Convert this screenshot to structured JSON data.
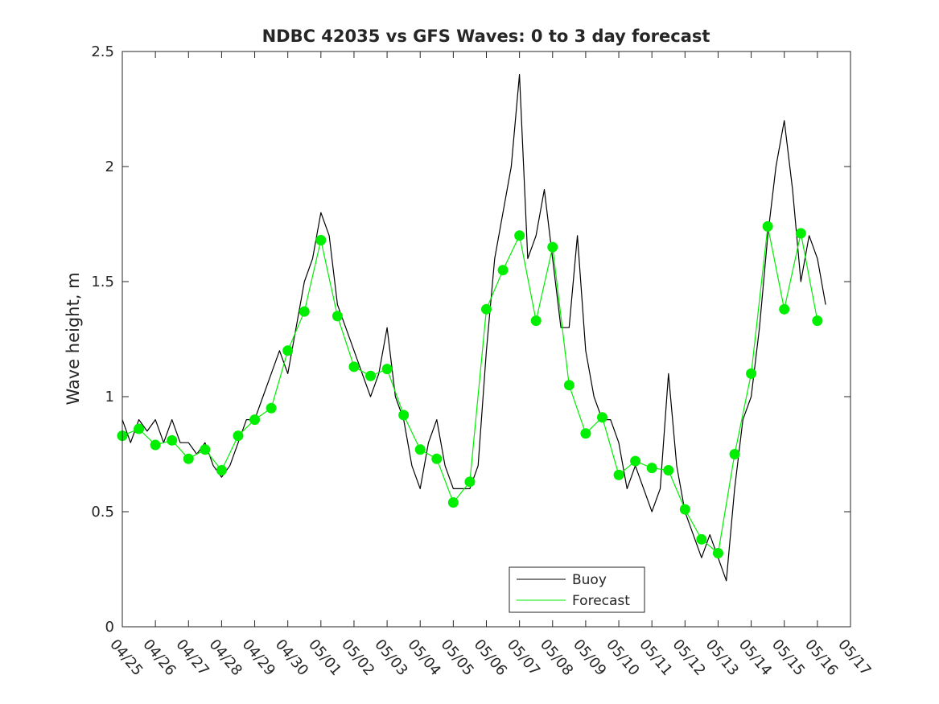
{
  "chart_data": {
    "type": "line",
    "title": "NDBC 42035 vs GFS Waves: 0 to 3 day forecast",
    "xlabel": "",
    "ylabel": "Wave height, m",
    "xlim": [
      "04/25",
      "05/17"
    ],
    "ylim": [
      0,
      2.5
    ],
    "yticks": [
      "0",
      "0.5",
      "1",
      "1.5",
      "2",
      "2.5"
    ],
    "xticks": [
      "04/25",
      "04/26",
      "04/27",
      "04/28",
      "04/29",
      "04/30",
      "05/01",
      "05/02",
      "05/03",
      "05/04",
      "05/05",
      "05/06",
      "05/07",
      "05/08",
      "05/09",
      "05/10",
      "05/11",
      "05/12",
      "05/13",
      "05/14",
      "05/15",
      "05/16",
      "05/17"
    ],
    "grid": false,
    "legend": {
      "position": "bottom-center",
      "entries": [
        "Buoy",
        "Forecast"
      ]
    },
    "colors": {
      "buoy": "#000000",
      "forecast": "#00ee00",
      "axis": "#262626"
    },
    "series": [
      {
        "name": "Buoy",
        "color": "#000000",
        "x": [
          "04/25 00:00",
          "04/25 06:00",
          "04/25 12:00",
          "04/25 18:00",
          "04/26 00:00",
          "04/26 06:00",
          "04/26 12:00",
          "04/26 18:00",
          "04/27 00:00",
          "04/27 06:00",
          "04/27 12:00",
          "04/27 18:00",
          "04/28 00:00",
          "04/28 06:00",
          "04/28 12:00",
          "04/28 18:00",
          "04/29 00:00",
          "04/29 06:00",
          "04/29 12:00",
          "04/29 18:00",
          "04/30 00:00",
          "04/30 06:00",
          "04/30 12:00",
          "04/30 18:00",
          "05/01 00:00",
          "05/01 06:00",
          "05/01 12:00",
          "05/01 18:00",
          "05/02 00:00",
          "05/02 06:00",
          "05/02 12:00",
          "05/02 18:00",
          "05/03 00:00",
          "05/03 06:00",
          "05/03 12:00",
          "05/03 18:00",
          "05/04 00:00",
          "05/04 06:00",
          "05/04 12:00",
          "05/04 18:00",
          "05/05 00:00",
          "05/05 06:00",
          "05/05 12:00",
          "05/05 18:00",
          "05/06 00:00",
          "05/06 06:00",
          "05/06 12:00",
          "05/06 18:00",
          "05/07 00:00",
          "05/07 06:00",
          "05/07 12:00",
          "05/07 18:00",
          "05/08 00:00",
          "05/08 06:00",
          "05/08 12:00",
          "05/08 18:00",
          "05/09 00:00",
          "05/09 06:00",
          "05/09 12:00",
          "05/09 18:00",
          "05/10 00:00",
          "05/10 06:00",
          "05/10 12:00",
          "05/10 18:00",
          "05/11 00:00",
          "05/11 06:00",
          "05/11 12:00",
          "05/11 18:00",
          "05/12 00:00",
          "05/12 06:00",
          "05/12 12:00",
          "05/12 18:00",
          "05/13 00:00",
          "05/13 06:00",
          "05/13 12:00",
          "05/13 18:00",
          "05/14 00:00",
          "05/14 06:00",
          "05/14 12:00",
          "05/14 18:00",
          "05/15 00:00",
          "05/15 06:00",
          "05/15 12:00",
          "05/15 18:00",
          "05/16 00:00",
          "05/16 06:00"
        ],
        "values": [
          0.9,
          0.8,
          0.9,
          0.85,
          0.9,
          0.8,
          0.9,
          0.8,
          0.8,
          0.75,
          0.8,
          0.7,
          0.65,
          0.7,
          0.8,
          0.9,
          0.9,
          1.0,
          1.1,
          1.2,
          1.1,
          1.3,
          1.5,
          1.6,
          1.8,
          1.7,
          1.4,
          1.3,
          1.2,
          1.1,
          1.0,
          1.1,
          1.3,
          1.0,
          0.9,
          0.7,
          0.6,
          0.8,
          0.9,
          0.7,
          0.6,
          0.6,
          0.6,
          0.7,
          1.2,
          1.6,
          1.8,
          2.0,
          2.4,
          1.6,
          1.7,
          1.9,
          1.6,
          1.3,
          1.3,
          1.7,
          1.2,
          1.0,
          0.9,
          0.9,
          0.8,
          0.6,
          0.7,
          0.6,
          0.5,
          0.6,
          1.1,
          0.7,
          0.5,
          0.4,
          0.3,
          0.4,
          0.3,
          0.2,
          0.6,
          0.9,
          1.0,
          1.3,
          1.7,
          2.0,
          2.2,
          1.9,
          1.5,
          1.7,
          1.6,
          1.4
        ]
      },
      {
        "name": "Forecast",
        "color": "#00ee00",
        "x": [
          "04/25 00:00",
          "04/25 12:00",
          "04/26 00:00",
          "04/26 12:00",
          "04/27 00:00",
          "04/27 12:00",
          "04/28 00:00",
          "04/28 12:00",
          "04/29 00:00",
          "04/29 12:00",
          "04/30 00:00",
          "04/30 12:00",
          "05/01 00:00",
          "05/01 12:00",
          "05/02 00:00",
          "05/02 12:00",
          "05/03 00:00",
          "05/03 12:00",
          "05/04 00:00",
          "05/04 12:00",
          "05/05 00:00",
          "05/05 12:00",
          "05/06 00:00",
          "05/06 12:00",
          "05/07 00:00",
          "05/07 12:00",
          "05/08 00:00",
          "05/08 12:00",
          "05/09 00:00",
          "05/09 12:00",
          "05/10 00:00",
          "05/10 12:00",
          "05/11 00:00",
          "05/11 12:00",
          "05/12 00:00",
          "05/12 12:00",
          "05/13 00:00",
          "05/13 12:00",
          "05/14 00:00",
          "05/14 12:00",
          "05/15 00:00",
          "05/15 12:00",
          "05/16 00:00"
        ],
        "values": [
          0.83,
          0.86,
          0.79,
          0.81,
          0.73,
          0.77,
          0.68,
          0.83,
          0.9,
          0.95,
          1.2,
          1.37,
          1.68,
          1.35,
          1.13,
          1.09,
          1.12,
          0.92,
          0.77,
          0.73,
          0.54,
          0.63,
          1.38,
          1.55,
          1.7,
          1.33,
          1.65,
          1.05,
          0.84,
          0.91,
          0.66,
          0.72,
          0.69,
          0.68,
          0.51,
          0.38,
          0.32,
          0.75,
          1.1,
          1.74,
          1.38,
          1.71,
          1.33
        ]
      }
    ]
  }
}
